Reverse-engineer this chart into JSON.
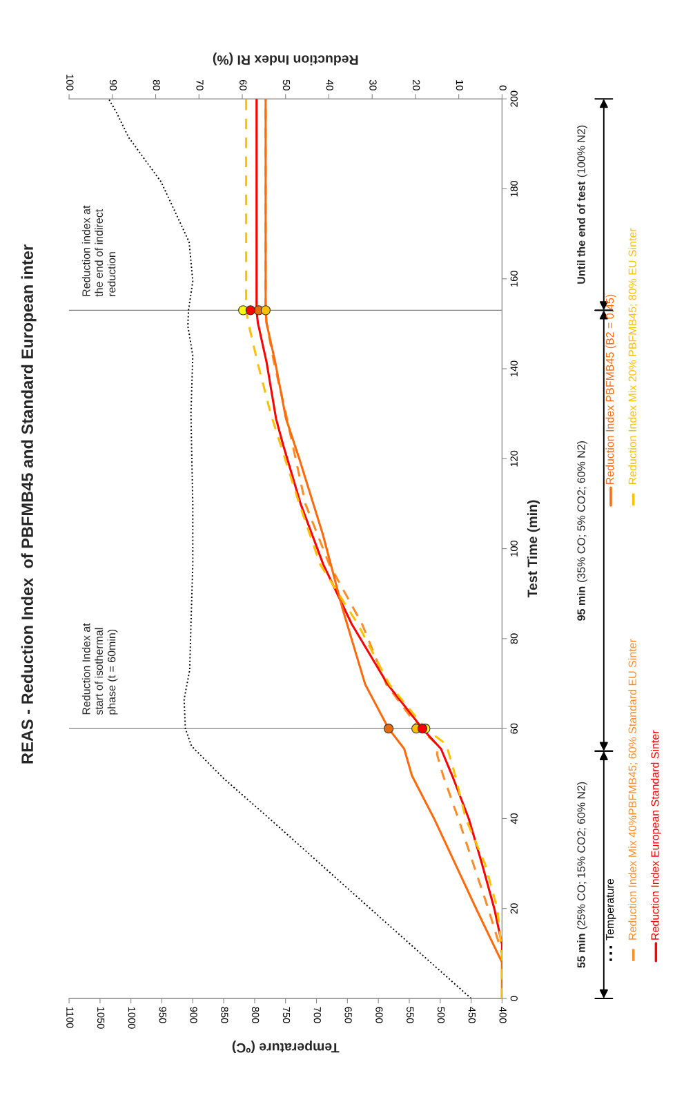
{
  "chart_data": {
    "type": "line",
    "title": "REAS - Reduction Index  of PBFMB45 and Standard European inter",
    "xlabel": "Temperature (ºC)",
    "x2label": "Reduction Index RI (%)",
    "ylabel": "Test Time (min)",
    "xlim": [
      1100,
      400
    ],
    "xticks": [
      400,
      450,
      500,
      550,
      600,
      650,
      700,
      750,
      800,
      850,
      900,
      950,
      1000,
      1050,
      1100
    ],
    "x2lim": [
      100,
      0
    ],
    "x2ticks": [
      0,
      10,
      20,
      30,
      40,
      50,
      60,
      70,
      80,
      90,
      100
    ],
    "ylim": [
      0,
      200
    ],
    "yticks": [
      0,
      20,
      40,
      60,
      80,
      100,
      120,
      140,
      160,
      180,
      200
    ],
    "grid": false,
    "legend": "right",
    "series": [
      {
        "name": "Temperature",
        "color": "#000000",
        "line_style": "dotted",
        "marker": "none",
        "values": [
          0,
          10.9,
          23.9,
          39.5,
          48.9,
          56.1,
          60,
          66.5,
          73,
          83,
          96.5,
          110,
          123,
          130,
          142.9,
          149.5,
          152.9,
          159.5,
          168.2,
          181.5,
          191.5,
          196.9,
          200
        ],
        "x": [
          450,
          539,
          645,
          772,
          850,
          902,
          912,
          914,
          905,
          903,
          900,
          900,
          902,
          903,
          900,
          908,
          907,
          900,
          906,
          951,
          1004,
          1023,
          1036
        ]
      },
      {
        "name": "Reduction Index Mix 40%PBFMB45; 60% Standard EU Sinter",
        "color": "#ff8c28",
        "line_style": "dashed",
        "marker": "none",
        "axis": "x2",
        "values": [
          0,
          10,
          20,
          29.8,
          40,
          49.5,
          54.2,
          56.5,
          60,
          69.8,
          83.2,
          96.5,
          109.9,
          129.9,
          141.5,
          150.2,
          152.9,
          200
        ],
        "x": [
          0,
          0,
          3.2,
          6.6,
          10.1,
          13.6,
          15,
          15,
          19.1,
          26.7,
          32.3,
          39.9,
          45.4,
          49.9,
          52.7,
          54.4,
          54.6,
          54.6
        ]
      },
      {
        "name": "Reduction Index European Standard Sinter",
        "color": "#ff0000",
        "line_style": "solid",
        "marker": "none",
        "axis": "x2",
        "values": [
          0,
          12,
          20,
          29.8,
          40,
          49.5,
          55.5,
          60,
          69.8,
          83.2,
          96.5,
          109.9,
          123.2,
          128.9,
          141.5,
          150.2,
          152.9,
          200
        ],
        "x": [
          0,
          0,
          1.8,
          4.6,
          7.7,
          11.5,
          14.1,
          18.4,
          26.4,
          34.7,
          41.3,
          46.5,
          50.6,
          52.2,
          54.4,
          56.4,
          56.7,
          56.7
        ]
      },
      {
        "name": "Reduction Index PBFMB45 (B2 = 0.45)",
        "color": "#fe6a0c",
        "line_style": "solid",
        "marker": "none",
        "axis": "x2",
        "values": [
          0,
          8,
          20,
          40,
          49.5,
          55.5,
          60,
          69.8,
          86.5,
          103.2,
          119.9,
          128.9,
          141.5,
          150.2,
          152.9,
          200
        ],
        "x": [
          0,
          0,
          6.0,
          15.7,
          20.8,
          22.6,
          26.2,
          31.6,
          36.8,
          41.4,
          46.8,
          49.9,
          52.4,
          54.4,
          54.6,
          54.6
        ]
      },
      {
        "name": "Reduction Index Mix 20% PBFMB45; 80% EU Sinter",
        "color": "#ffc000",
        "line_style": "dashed",
        "marker": "none",
        "axis": "x2",
        "values": [
          0,
          10,
          20,
          29.8,
          40,
          49.5,
          56.5,
          60,
          69.8,
          83.2,
          96.5,
          109.9,
          129.9,
          141.5,
          150.2,
          152.9,
          200
        ],
        "x": [
          0,
          0,
          1.1,
          3.9,
          8.4,
          10.8,
          12.9,
          17.7,
          26,
          33.3,
          42,
          46.8,
          53.4,
          56.5,
          58.6,
          59.1,
          59.1
        ]
      },
      {
        "type": "scatter",
        "color": "#e46c0a",
        "marker": "circle",
        "axis": "x2",
        "values": [
          60,
          153
        ],
        "x": [
          26.2,
          56.2
        ]
      },
      {
        "type": "scatter",
        "color": "#ffc000",
        "marker": "circle",
        "axis": "x2",
        "values": [
          60,
          153
        ],
        "x": [
          19.8,
          54.6
        ]
      },
      {
        "type": "scatter",
        "color": "#ffff00",
        "marker": "circle",
        "axis": "x2",
        "values": [
          60,
          153
        ],
        "x": [
          17.7,
          59.8
        ]
      },
      {
        "type": "scatter",
        "color": "#ff0000",
        "marker": "circle",
        "axis": "x2",
        "values": [
          60,
          153
        ],
        "x": [
          18.4,
          58.1
        ]
      }
    ],
    "ref_lines": [
      {
        "axis": "y",
        "value": 60,
        "label": "Reduction Index at\nstart of isothermal\nphase (t = 60min)",
        "color": "#808080"
      },
      {
        "axis": "y",
        "value": 153,
        "label": "Reduction index at\nthe end of indirect\nreduction",
        "color": "#808080"
      }
    ],
    "annotations": [
      "55 min (25% CO; 15% CO2; 60% N2)",
      "95 min (35% CO; 5% CO2; 60% N2)",
      "Until the end of test (100% N2)"
    ]
  }
}
